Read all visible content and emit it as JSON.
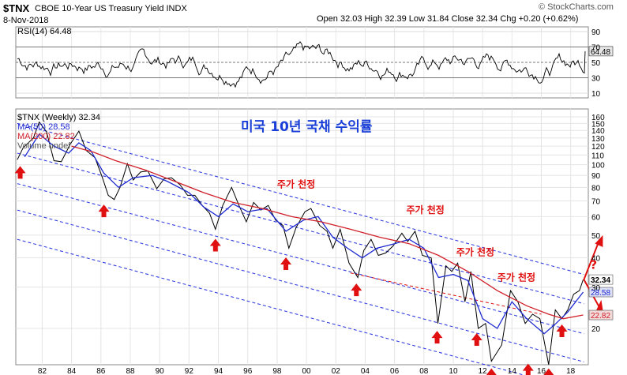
{
  "header": {
    "symbol": "$TNX",
    "name": "CBOE 10-Year US Treasury Yield INDX",
    "date": "8-Nov-2018",
    "ohlc": "Open 32.03  High 32.39  Low 31.84  Close 32.34  Chg +0.20 (+0.62%)",
    "copyright": "© StockCharts.com"
  },
  "chart_data": {
    "type": "line",
    "title": "미국 10년 국채 수익률",
    "rsi": {
      "label": "RSI(14) 64.48",
      "value": 64.48,
      "ticks": [
        90,
        70,
        50,
        30,
        10
      ],
      "ylim": [
        10,
        90
      ]
    },
    "main": {
      "legend": [
        "$TNX (Weekly) 32.34",
        "MA(50) 28.58",
        "MA(200) 22.82",
        "Volume undef"
      ],
      "scale": "log",
      "ylim": [
        14,
        160
      ],
      "yticks": [
        160,
        150,
        140,
        130,
        120,
        110,
        100,
        90,
        80,
        70,
        60,
        50,
        40,
        30,
        20
      ],
      "x_ticks": [
        "82",
        "84",
        "86",
        "88",
        "90",
        "92",
        "94",
        "96",
        "98",
        "00",
        "02",
        "04",
        "06",
        "08",
        "10",
        "12",
        "14",
        "16",
        "18"
      ],
      "x_tick_years": [
        1982,
        1984,
        1986,
        1988,
        1990,
        1992,
        1994,
        1996,
        1998,
        2000,
        2002,
        2004,
        2006,
        2008,
        2010,
        2012,
        2014,
        2016,
        2018
      ],
      "xlim_years": [
        1980.2,
        2019.2
      ],
      "series": [
        {
          "name": "$TNX (Weekly)",
          "points": [
            [
              1980.3,
              105
            ],
            [
              1980.7,
              118
            ],
            [
              1981.4,
              130
            ],
            [
              1981.8,
              152
            ],
            [
              1982.3,
              138
            ],
            [
              1982.8,
              104
            ],
            [
              1983.3,
              103
            ],
            [
              1983.9,
              122
            ],
            [
              1984.5,
              139
            ],
            [
              1985.0,
              115
            ],
            [
              1985.6,
              107
            ],
            [
              1986.1,
              88
            ],
            [
              1986.5,
              74
            ],
            [
              1986.9,
              71
            ],
            [
              1987.3,
              80
            ],
            [
              1987.8,
              101
            ],
            [
              1988.2,
              86
            ],
            [
              1988.7,
              93
            ],
            [
              1989.2,
              94
            ],
            [
              1989.8,
              79
            ],
            [
              1990.3,
              87
            ],
            [
              1990.8,
              88
            ],
            [
              1991.4,
              82
            ],
            [
              1991.9,
              74
            ],
            [
              1992.4,
              74
            ],
            [
              1992.9,
              67
            ],
            [
              1993.4,
              62
            ],
            [
              1993.8,
              53
            ],
            [
              1994.3,
              67
            ],
            [
              1994.9,
              80
            ],
            [
              1995.4,
              67
            ],
            [
              1995.9,
              57
            ],
            [
              1996.4,
              69
            ],
            [
              1996.9,
              64
            ],
            [
              1997.4,
              67
            ],
            [
              1997.9,
              58
            ],
            [
              1998.4,
              55
            ],
            [
              1998.8,
              44
            ],
            [
              1999.3,
              54
            ],
            [
              1999.9,
              63
            ],
            [
              2000.3,
              65
            ],
            [
              2000.9,
              55
            ],
            [
              2001.4,
              52
            ],
            [
              2001.8,
              44
            ],
            [
              2002.3,
              53
            ],
            [
              2002.9,
              38
            ],
            [
              2003.5,
              33
            ],
            [
              2003.9,
              43
            ],
            [
              2004.4,
              48
            ],
            [
              2004.9,
              41
            ],
            [
              2005.4,
              42
            ],
            [
              2005.9,
              45
            ],
            [
              2006.5,
              51
            ],
            [
              2006.9,
              47
            ],
            [
              2007.4,
              52
            ],
            [
              2007.9,
              41
            ],
            [
              2008.5,
              40
            ],
            [
              2008.95,
              21
            ],
            [
              2009.5,
              37
            ],
            [
              2009.9,
              35
            ],
            [
              2010.3,
              38
            ],
            [
              2010.8,
              26
            ],
            [
              2011.2,
              35
            ],
            [
              2011.7,
              20
            ],
            [
              2012.2,
              21
            ],
            [
              2012.6,
              14.5
            ],
            [
              2013.3,
              17
            ],
            [
              2013.9,
              29
            ],
            [
              2014.4,
              26
            ],
            [
              2014.9,
              21
            ],
            [
              2015.4,
              23
            ],
            [
              2015.9,
              22
            ],
            [
              2016.5,
              14
            ],
            [
              2016.95,
              24
            ],
            [
              2017.4,
              22
            ],
            [
              2017.8,
              24
            ],
            [
              2018.2,
              28
            ],
            [
              2018.6,
              29
            ],
            [
              2018.85,
              32.34
            ]
          ]
        },
        {
          "name": "MA(50)",
          "points": [
            [
              1980.8,
              108
            ],
            [
              1981.8,
              135
            ],
            [
              1982.8,
              120
            ],
            [
              1983.8,
              112
            ],
            [
              1984.5,
              124
            ],
            [
              1985.3,
              115
            ],
            [
              1986.2,
              92
            ],
            [
              1987.2,
              80
            ],
            [
              1988.2,
              88
            ],
            [
              1989.5,
              90
            ],
            [
              1990.5,
              85
            ],
            [
              1992.0,
              76
            ],
            [
              1993.0,
              66
            ],
            [
              1994.0,
              60
            ],
            [
              1995.0,
              68
            ],
            [
              1996.0,
              63
            ],
            [
              1997.3,
              65
            ],
            [
              1998.6,
              52
            ],
            [
              1999.8,
              58
            ],
            [
              2000.8,
              60
            ],
            [
              2001.8,
              49
            ],
            [
              2002.8,
              44
            ],
            [
              2003.8,
              40
            ],
            [
              2004.8,
              44
            ],
            [
              2006.0,
              46
            ],
            [
              2007.0,
              48
            ],
            [
              2008.0,
              44
            ],
            [
              2009.0,
              33
            ],
            [
              2010.0,
              34
            ],
            [
              2011.0,
              32
            ],
            [
              2012.0,
              22
            ],
            [
              2013.0,
              20
            ],
            [
              2014.0,
              26
            ],
            [
              2015.0,
              22
            ],
            [
              2016.2,
              19
            ],
            [
              2017.0,
              21
            ],
            [
              2017.8,
              23.5
            ],
            [
              2018.85,
              28.58
            ]
          ]
        },
        {
          "name": "MA(200)",
          "points": [
            [
              1984.0,
              120
            ],
            [
              1985.5,
              113
            ],
            [
              1987.0,
              104
            ],
            [
              1989.0,
              95
            ],
            [
              1991.0,
              85
            ],
            [
              1993.0,
              76
            ],
            [
              1995.0,
              69
            ],
            [
              1997.0,
              65
            ],
            [
              1999.0,
              60
            ],
            [
              2001.0,
              57
            ],
            [
              2003.0,
              53
            ],
            [
              2005.0,
              49
            ],
            [
              2007.0,
              46
            ],
            [
              2009.0,
              41
            ],
            [
              2011.0,
              35
            ],
            [
              2013.0,
              29
            ],
            [
              2015.0,
              25
            ],
            [
              2016.5,
              23
            ],
            [
              2017.5,
              22
            ],
            [
              2018.85,
              22.82
            ]
          ]
        }
      ],
      "channel_lines": [
        {
          "p1": [
            1980.3,
            150
          ],
          "p2": [
            2018.9,
            34
          ]
        },
        {
          "p1": [
            1980.3,
            112
          ],
          "p2": [
            2018.9,
            25.5
          ]
        },
        {
          "p1": [
            1980.3,
            83
          ],
          "p2": [
            2018.9,
            19
          ]
        },
        {
          "p1": [
            1980.3,
            64
          ],
          "p2": [
            2018.9,
            14.4
          ]
        },
        {
          "p1": [
            1980.3,
            48
          ],
          "p2": [
            2018.9,
            10.8
          ]
        }
      ],
      "red_dashed": {
        "p1": [
          2003.0,
          34.5
        ],
        "p2": [
          2016.0,
          23
        ]
      },
      "labels": {
        "close": "32.34",
        "ma50": "28.58",
        "ma200": "22.82",
        "target": "?",
        "peak_annotation": "주가 천정"
      },
      "peak_annotations": [
        {
          "year": 1998.0,
          "value": 80
        },
        {
          "year": 2006.8,
          "value": 62
        },
        {
          "year": 2010.2,
          "value": 41
        },
        {
          "year": 2013.0,
          "value": 32
        }
      ],
      "bottom_markers": [
        {
          "year": 1980.5,
          "value": 92
        },
        {
          "year": 1986.2,
          "value": 63
        },
        {
          "year": 1993.8,
          "value": 45
        },
        {
          "year": 1998.6,
          "value": 37.5
        },
        {
          "year": 2003.4,
          "value": 29
        },
        {
          "year": 2008.9,
          "value": 18.2
        },
        {
          "year": 2011.6,
          "value": 17.8
        },
        {
          "year": 2012.6,
          "value": 12.6
        },
        {
          "year": 2015.1,
          "value": 13.2
        },
        {
          "year": 2016.5,
          "value": 12.6
        },
        {
          "year": 2017.4,
          "value": 19.4
        }
      ],
      "colors": {
        "price": "#000000",
        "ma50": "#1f2bd0",
        "ma200": "#d0202a",
        "channel": "#3540e0",
        "annotation": "#e01010",
        "title": "#1a3fd8"
      }
    }
  }
}
